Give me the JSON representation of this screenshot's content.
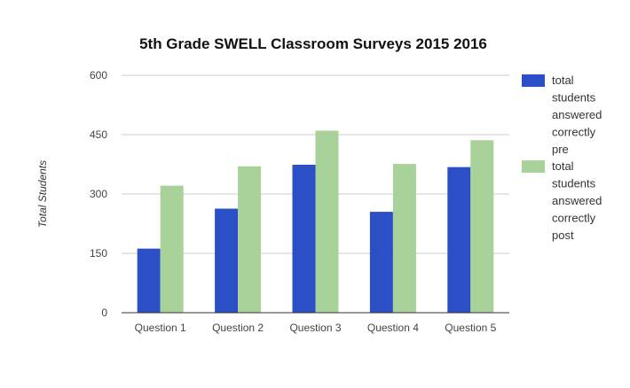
{
  "chart_data": {
    "type": "bar",
    "title": "5th Grade SWELL Classroom Surveys 2015 2016",
    "xlabel": "",
    "ylabel": "Total Students",
    "categories": [
      "Question 1",
      "Question 2",
      "Question 3",
      "Question 4",
      "Question 5"
    ],
    "series": [
      {
        "name": "total students answered correctly pre",
        "name_lines": [
          "total",
          "students",
          "answered",
          "correctly",
          "pre"
        ],
        "color": "#2a4fc6",
        "values": [
          162,
          263,
          374,
          255,
          368
        ]
      },
      {
        "name": "total students answered correctly post",
        "name_lines": [
          "total",
          "students",
          "answered",
          "correctly",
          "post"
        ],
        "color": "#a8d29a",
        "values": [
          321,
          370,
          460,
          376,
          436
        ]
      }
    ],
    "ylim": [
      0,
      600
    ],
    "yticks": [
      0,
      150,
      300,
      450,
      600
    ],
    "grid": true,
    "legend_position": "right"
  }
}
